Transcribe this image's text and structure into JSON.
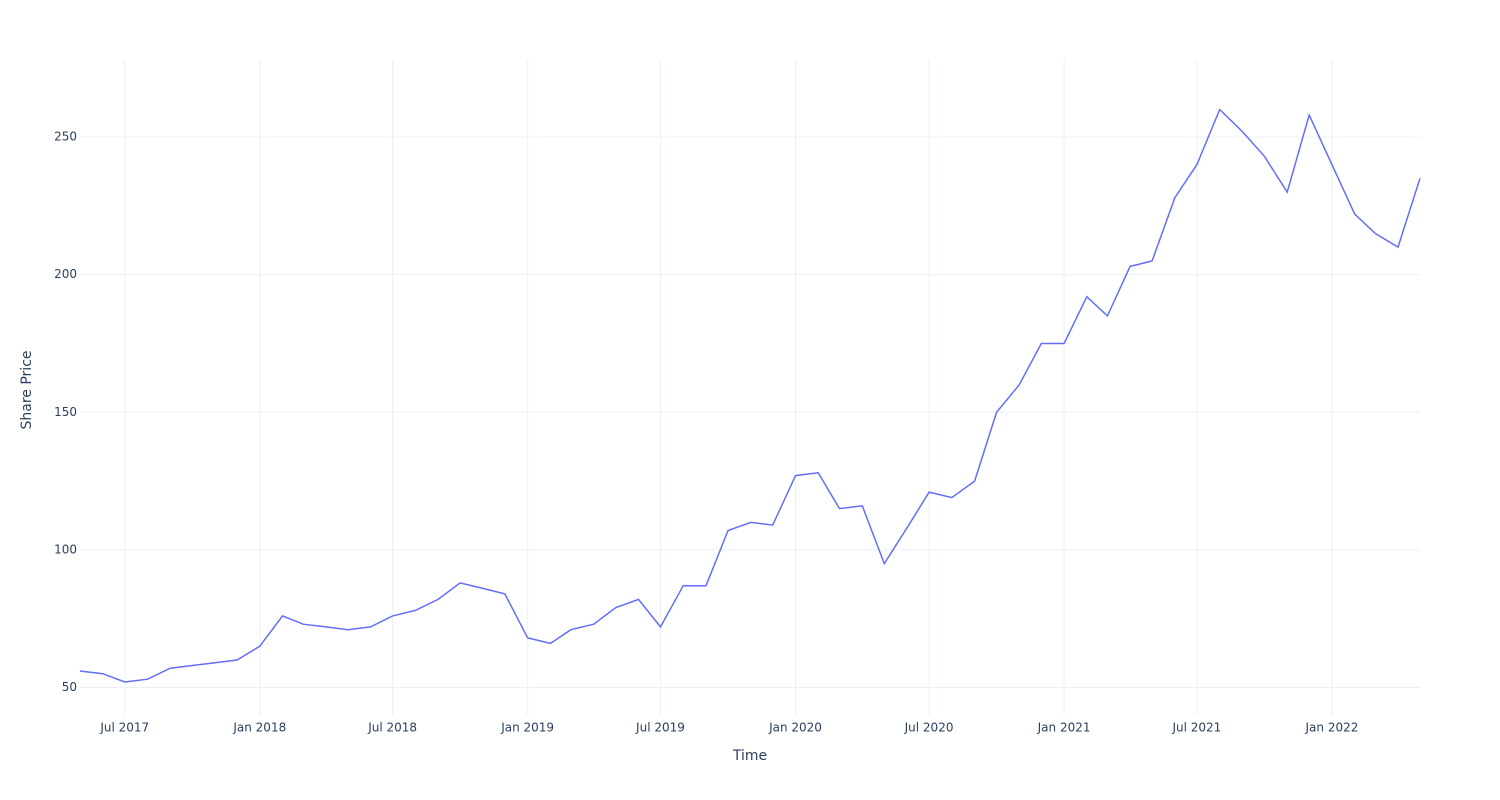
{
  "chart_data": {
    "type": "line",
    "x_label": "Time",
    "y_label": "Share Price",
    "x": [
      "2017-05",
      "2017-06",
      "2017-07",
      "2017-08",
      "2017-09",
      "2017-10",
      "2017-11",
      "2017-12",
      "2018-01",
      "2018-02",
      "2018-03",
      "2018-04",
      "2018-05",
      "2018-06",
      "2018-07",
      "2018-08",
      "2018-09",
      "2018-10",
      "2018-11",
      "2018-12",
      "2019-01",
      "2019-02",
      "2019-03",
      "2019-04",
      "2019-05",
      "2019-06",
      "2019-07",
      "2019-08",
      "2019-09",
      "2019-10",
      "2019-11",
      "2019-12",
      "2020-01",
      "2020-02",
      "2020-03",
      "2020-04",
      "2020-05",
      "2020-06",
      "2020-07",
      "2020-08",
      "2020-09",
      "2020-10",
      "2020-11",
      "2020-12",
      "2021-01",
      "2021-02",
      "2021-03",
      "2021-04",
      "2021-05",
      "2021-06",
      "2021-07",
      "2021-08",
      "2021-09",
      "2021-10",
      "2021-11",
      "2021-12",
      "2022-01",
      "2022-02",
      "2022-03",
      "2022-04",
      "2022-05"
    ],
    "series": [
      {
        "color": "#636efa",
        "values": [
          56,
          55,
          52,
          53,
          57,
          58,
          59,
          60,
          65,
          76,
          73,
          72,
          71,
          72,
          76,
          78,
          82,
          88,
          86,
          84,
          68,
          66,
          71,
          73,
          79,
          82,
          72,
          87,
          87,
          107,
          110,
          109,
          127,
          128,
          115,
          116,
          95,
          108,
          121,
          119,
          125,
          150,
          160,
          175,
          175,
          192,
          185,
          203,
          205,
          228,
          240,
          260,
          252,
          243,
          230,
          258,
          240,
          222,
          215,
          210,
          235
        ]
      }
    ],
    "xlim": [
      "2017-05",
      "2022-05"
    ],
    "xticks": [
      {
        "value": "2017-07",
        "label": "Jul 2017"
      },
      {
        "value": "2018-01",
        "label": "Jan 2018"
      },
      {
        "value": "2018-07",
        "label": "Jul 2018"
      },
      {
        "value": "2019-01",
        "label": "Jan 2019"
      },
      {
        "value": "2019-07",
        "label": "Jul 2019"
      },
      {
        "value": "2020-01",
        "label": "Jan 2020"
      },
      {
        "value": "2020-07",
        "label": "Jul 2020"
      },
      {
        "value": "2021-01",
        "label": "Jan 2021"
      },
      {
        "value": "2021-07",
        "label": "Jul 2021"
      },
      {
        "value": "2022-01",
        "label": "Jan 2022"
      }
    ],
    "ylim": [
      40,
      278
    ],
    "yticks": [
      50,
      100,
      150,
      200,
      250
    ],
    "grid": true
  }
}
